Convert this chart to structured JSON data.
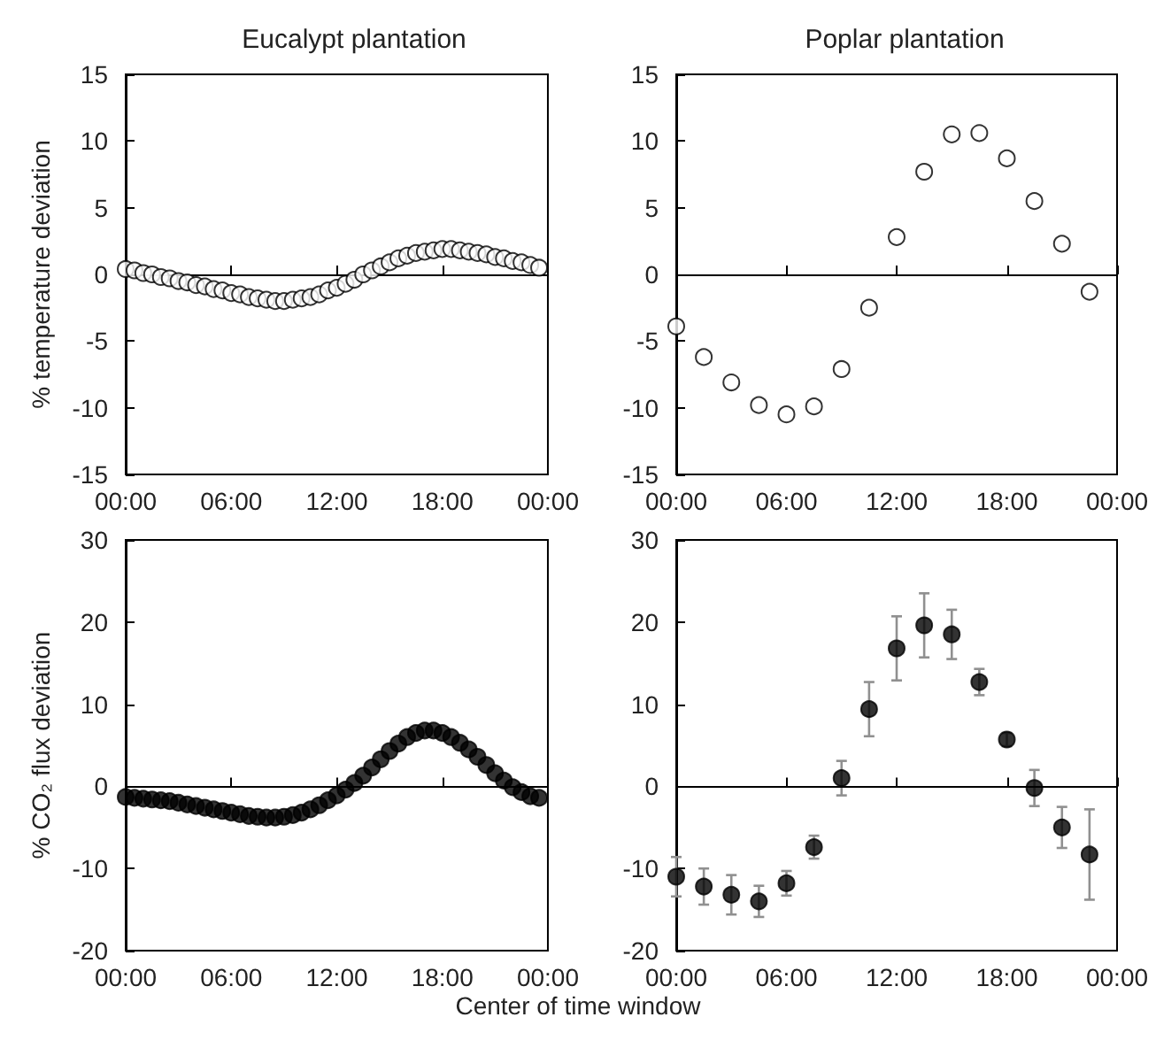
{
  "chart_data": [
    {
      "type": "scatter",
      "title": "Eucalypt plantation",
      "ylabel": "% temperature deviation",
      "marker": "circle",
      "xlim": [
        0,
        24
      ],
      "xticks": [
        {
          "value": 0,
          "label": "00:00"
        },
        {
          "value": 6,
          "label": "06:00"
        },
        {
          "value": 12,
          "label": "12:00"
        },
        {
          "value": 18,
          "label": "18:00"
        },
        {
          "value": 24,
          "label": "00:00"
        }
      ],
      "ylim": [
        -15,
        15
      ],
      "yticks": [
        -15,
        -10,
        -5,
        0,
        5,
        10,
        15
      ],
      "ref_lines": [
        {
          "axis": "y",
          "value": 0,
          "color": "#000000"
        }
      ],
      "x": [
        0,
        0.5,
        1,
        1.5,
        2,
        2.5,
        3,
        3.5,
        4,
        4.5,
        5,
        5.5,
        6,
        6.5,
        7,
        7.5,
        8,
        8.5,
        9,
        9.5,
        10,
        10.5,
        11,
        11.5,
        12,
        12.5,
        13,
        13.5,
        14,
        14.5,
        15,
        15.5,
        16,
        16.5,
        17,
        17.5,
        18,
        18.5,
        19,
        19.5,
        20,
        20.5,
        21,
        21.5,
        22,
        22.5,
        23,
        23.5
      ],
      "series": [
        {
          "color": "#ffffff",
          "values": [
            0.4,
            0.3,
            0.1,
            0,
            -0.2,
            -0.3,
            -0.5,
            -0.6,
            -0.8,
            -0.9,
            -1.1,
            -1.2,
            -1.4,
            -1.5,
            -1.7,
            -1.8,
            -1.9,
            -2,
            -2,
            -1.9,
            -1.8,
            -1.7,
            -1.5,
            -1.2,
            -1,
            -0.7,
            -0.4,
            0,
            0.3,
            0.6,
            0.9,
            1.2,
            1.4,
            1.6,
            1.7,
            1.8,
            1.9,
            1.9,
            1.8,
            1.7,
            1.6,
            1.5,
            1.3,
            1.2,
            1,
            0.9,
            0.7,
            0.5
          ]
        }
      ]
    },
    {
      "type": "scatter",
      "title": "Poplar plantation",
      "marker": "circle",
      "xlim": [
        0,
        24
      ],
      "xticks": [
        {
          "value": 0,
          "label": "00:00"
        },
        {
          "value": 6,
          "label": "06:00"
        },
        {
          "value": 12,
          "label": "12:00"
        },
        {
          "value": 18,
          "label": "18:00"
        },
        {
          "value": 24,
          "label": "00:00"
        }
      ],
      "ylim": [
        -15,
        15
      ],
      "yticks": [
        -15,
        -10,
        -5,
        0,
        5,
        10,
        15
      ],
      "ref_lines": [
        {
          "axis": "y",
          "value": 0,
          "color": "#000000"
        }
      ],
      "x": [
        0,
        1.5,
        3,
        4.5,
        6,
        7.5,
        9,
        10.5,
        12,
        13.5,
        15,
        16.5,
        18,
        19.5,
        21,
        22.5
      ],
      "series": [
        {
          "color": "#ffffff",
          "values": [
            -3.9,
            -6.2,
            -8.1,
            -9.8,
            -10.5,
            -9.9,
            -7.1,
            -2.5,
            2.8,
            7.7,
            10.5,
            10.6,
            8.7,
            5.5,
            2.3,
            -1.3
          ]
        }
      ]
    },
    {
      "type": "scatter",
      "ylabel": "% CO₂ flux deviation",
      "xlabel": "Center of time window",
      "marker": "circle",
      "xlim": [
        0,
        24
      ],
      "xticks": [
        {
          "value": 0,
          "label": "00:00"
        },
        {
          "value": 6,
          "label": "06:00"
        },
        {
          "value": 12,
          "label": "12:00"
        },
        {
          "value": 18,
          "label": "18:00"
        },
        {
          "value": 24,
          "label": "00:00"
        }
      ],
      "ylim": [
        -20,
        30
      ],
      "yticks": [
        -20,
        -10,
        0,
        10,
        20,
        30
      ],
      "ref_lines": [
        {
          "axis": "y",
          "value": 0,
          "color": "#000000"
        }
      ],
      "x": [
        0,
        0.5,
        1,
        1.5,
        2,
        2.5,
        3,
        3.5,
        4,
        4.5,
        5,
        5.5,
        6,
        6.5,
        7,
        7.5,
        8,
        8.5,
        9,
        9.5,
        10,
        10.5,
        11,
        11.5,
        12,
        12.5,
        13,
        13.5,
        14,
        14.5,
        15,
        15.5,
        16,
        16.5,
        17,
        17.5,
        18,
        18.5,
        19,
        19.5,
        20,
        20.5,
        21,
        21.5,
        22,
        22.5,
        23,
        23.5
      ],
      "series": [
        {
          "color": "#000000",
          "values": [
            -1.3,
            -1.4,
            -1.5,
            -1.6,
            -1.7,
            -1.8,
            -2,
            -2.2,
            -2.4,
            -2.6,
            -2.8,
            -3,
            -3.2,
            -3.4,
            -3.6,
            -3.7,
            -3.8,
            -3.8,
            -3.7,
            -3.5,
            -3.2,
            -2.8,
            -2.3,
            -1.7,
            -1.1,
            -0.4,
            0.4,
            1.3,
            2.3,
            3.3,
            4.3,
            5.2,
            6,
            6.5,
            6.8,
            6.8,
            6.5,
            6,
            5.3,
            4.5,
            3.6,
            2.6,
            1.6,
            0.7,
            -0.1,
            -0.7,
            -1.2,
            -1.4
          ]
        }
      ]
    },
    {
      "type": "scatter",
      "marker": "circle",
      "xlim": [
        0,
        24
      ],
      "xticks": [
        {
          "value": 0,
          "label": "00:00"
        },
        {
          "value": 6,
          "label": "06:00"
        },
        {
          "value": 12,
          "label": "12:00"
        },
        {
          "value": 18,
          "label": "18:00"
        },
        {
          "value": 24,
          "label": "00:00"
        }
      ],
      "ylim": [
        -20,
        30
      ],
      "yticks": [
        -20,
        -10,
        0,
        10,
        20,
        30
      ],
      "ref_lines": [
        {
          "axis": "y",
          "value": 0,
          "color": "#000000"
        }
      ],
      "x": [
        0,
        1.5,
        3,
        4.5,
        6,
        7.5,
        9,
        10.5,
        12,
        13.5,
        15,
        16.5,
        18,
        19.5,
        21,
        22.5
      ],
      "series": [
        {
          "color": "#000000",
          "values": [
            -11,
            -12.2,
            -13.2,
            -14,
            -11.8,
            -7.4,
            1,
            9.4,
            16.8,
            19.6,
            18.5,
            12.7,
            5.7,
            -0.2,
            -5,
            -8.3
          ],
          "errors": [
            2.4,
            2.2,
            2.4,
            1.9,
            1.5,
            1.4,
            2.1,
            3.3,
            3.9,
            3.9,
            3,
            1.6,
            0.8,
            2.2,
            2.5,
            5.5
          ]
        }
      ]
    }
  ]
}
